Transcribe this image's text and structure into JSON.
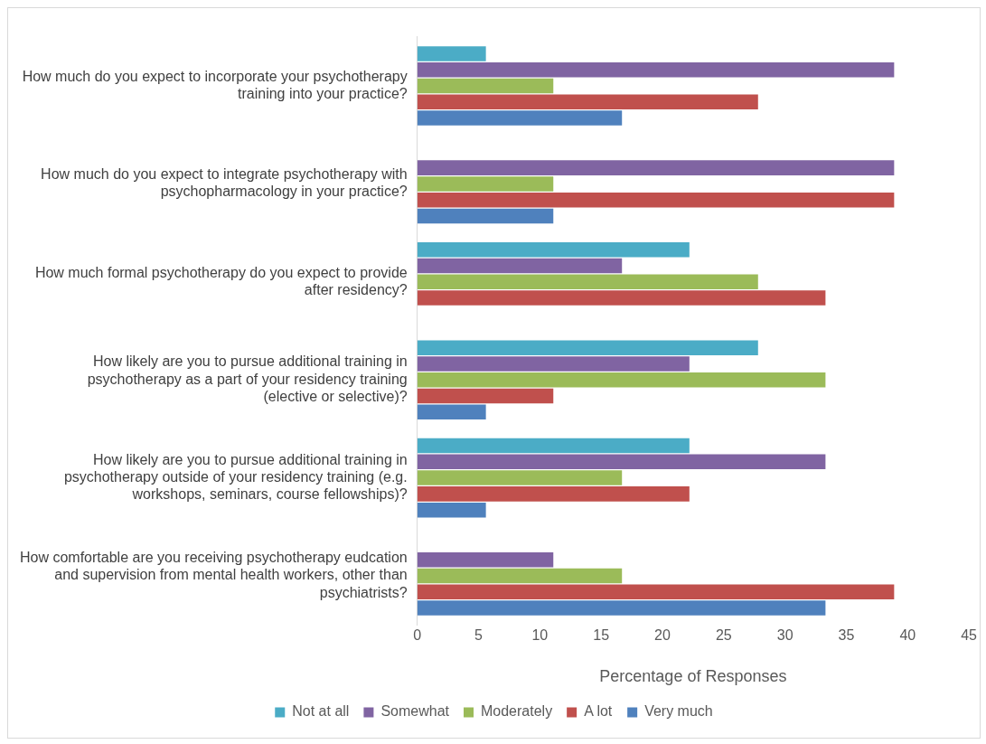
{
  "chart_data": {
    "type": "bar",
    "orientation": "horizontal",
    "xlabel": "Percentage of Responses",
    "categories": [
      "How much do you expect to incorporate your psychotherapy training into your practice?",
      "How much do you expect to integrate psychotherapy with psychopharmacology in your practice?",
      "How much formal psychotherapy do you expect to provide after residency?",
      "How likely are you to pursue additional training in psychotherapy as a part of your residency training (elective or selective)?",
      "How likely are you to pursue additional training in psychotherapy outside of your residency training (e.g. workshops, seminars, course fellowships)?",
      "How comfortable are you receiving psychotherapy eudcation and supervision from mental health workers, other than psychiatrists?"
    ],
    "series": [
      {
        "name": "Not at all",
        "color": "#4bacc6",
        "values": [
          5.6,
          0,
          22.2,
          27.8,
          22.2,
          0
        ]
      },
      {
        "name": "Somewhat",
        "color": "#8064a2",
        "values": [
          38.9,
          38.9,
          16.7,
          22.2,
          33.3,
          11.1
        ]
      },
      {
        "name": "Moderately",
        "color": "#9bbb59",
        "values": [
          11.1,
          11.1,
          27.8,
          33.3,
          16.7,
          16.7
        ]
      },
      {
        "name": "A lot",
        "color": "#c0504d",
        "values": [
          27.8,
          38.9,
          33.3,
          11.1,
          22.2,
          38.9
        ]
      },
      {
        "name": "Very much",
        "color": "#4f81bd",
        "values": [
          16.7,
          11.1,
          0,
          5.6,
          5.6,
          33.3
        ]
      }
    ],
    "xlim": [
      0,
      45
    ],
    "xticks": [
      0,
      5,
      10,
      15,
      20,
      25,
      30,
      35,
      40,
      45
    ],
    "grid": false,
    "legend": "bottom"
  }
}
